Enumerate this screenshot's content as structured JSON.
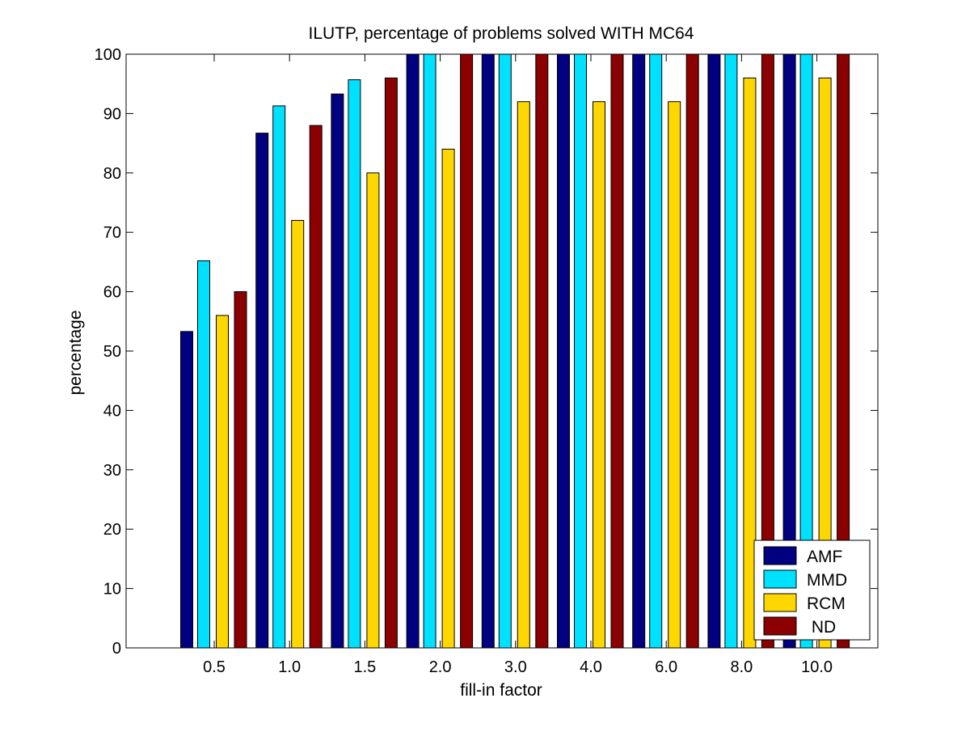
{
  "chart_data": {
    "type": "bar",
    "title": "ILUTP, percentage of problems solved WITH MC64",
    "xlabel": "fill-in factor",
    "ylabel": "percentage",
    "categories": [
      "0.5",
      "1.0",
      "1.5",
      "2.0",
      "3.0",
      "4.0",
      "6.0",
      "8.0",
      "10.0"
    ],
    "ylim": [
      0,
      100
    ],
    "yticks": [
      0,
      10,
      20,
      30,
      40,
      50,
      60,
      70,
      80,
      90,
      100
    ],
    "grid": false,
    "legend_position": "bottom-right",
    "series": [
      {
        "name": "AMF",
        "color": "#000080",
        "values": [
          53.3,
          86.7,
          93.3,
          100,
          100,
          100,
          100,
          100,
          100
        ]
      },
      {
        "name": "MMD",
        "color": "#00e0ff",
        "values": [
          65.2,
          91.3,
          95.7,
          100,
          100,
          100,
          100,
          100,
          100
        ]
      },
      {
        "name": "RCM",
        "color": "#ffd700",
        "values": [
          56,
          72,
          80,
          84,
          92,
          92,
          92,
          96,
          96
        ]
      },
      {
        "name": " ND",
        "color": "#8b0000",
        "values": [
          60,
          88,
          96,
          100,
          100,
          100,
          100,
          100,
          100
        ]
      }
    ]
  }
}
